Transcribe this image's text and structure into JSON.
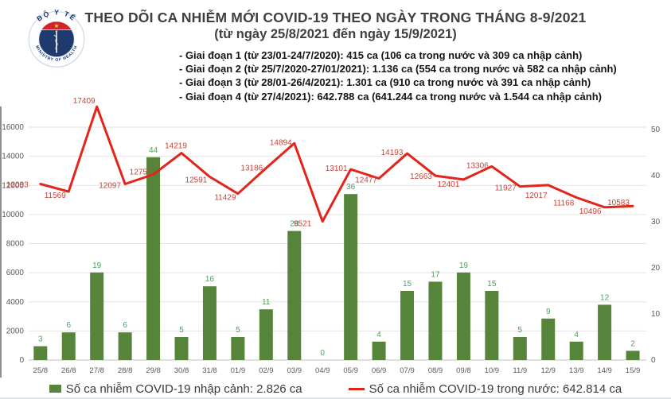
{
  "header": {
    "logo": {
      "top_text": "BỘ Y TẾ",
      "bottom_text": "MINISTRY OF HEALTH"
    },
    "title": "THEO DÕI CA NHIỄM MỚI COVID-19 THEO NGÀY TRONG THÁNG 8-9/2021",
    "subtitle": "(từ ngày 25/8/2021 đến ngày 15/9/2021)",
    "phases": [
      "- Giai đoạn 1 (từ 23/01-24/7/2020): 415 ca (106 ca trong nước và 309 ca nhập cảnh)",
      "- Giai đoạn 2 (từ 25/7/2020-27/01/2021): 1.136 ca (554 ca trong nước và 582 ca nhập cảnh)",
      "- Giai đoạn 3 (từ 28/01-26/4/2021): 1.301 ca (910 ca trong nước và 391 ca nhập cảnh)",
      "- Giai đoạn 4 (từ 27/4/2021): 642.788 ca (641.244 ca trong nước và 1.544 ca nhập cảnh)"
    ]
  },
  "chart_data": {
    "type": "combo",
    "categories": [
      "25/8",
      "26/8",
      "27/8",
      "28/8",
      "29/8",
      "30/8",
      "31/8",
      "01/9",
      "02/9",
      "03/9",
      "04/9",
      "05/9",
      "06/9",
      "07/9",
      "08/9",
      "09/8",
      "10/9",
      "11/9",
      "12/9",
      "13/9",
      "14/9",
      "15/9"
    ],
    "series": [
      {
        "name": "Số ca nhiễm COVID-19 nhập cảnh",
        "type": "bar",
        "axis": "right",
        "values": [
          3,
          6,
          19,
          6,
          44,
          5,
          16,
          5,
          11,
          28,
          0,
          36,
          4,
          15,
          17,
          19,
          15,
          5,
          9,
          4,
          12,
          2
        ]
      },
      {
        "name": "Số ca nhiễm COVID-19 trong nước",
        "type": "line",
        "axis": "left",
        "values": [
          12093,
          11569,
          17409,
          12097,
          12752,
          14219,
          12591,
          11429,
          13186,
          14894,
          9521,
          13101,
          12477,
          14193,
          12663,
          12401,
          13306,
          11927,
          12017,
          11168,
          10496,
          10583
        ]
      }
    ],
    "left_axis": {
      "ticks": [
        0,
        2000,
        4000,
        6000,
        8000,
        10000,
        12000,
        14000,
        16000
      ],
      "max": 16000
    },
    "right_axis": {
      "ticks": [
        0,
        10,
        20,
        30,
        40,
        50
      ],
      "max": 50
    },
    "grid": true,
    "legend_position": "bottom",
    "colors": {
      "bar": "#55843a",
      "bar_label": "#4d9e62",
      "line": "#e2241b",
      "line_label": "#c7433a",
      "axis_text": "#595959",
      "gridline": "#e2e2e2",
      "baseline": "#bfbfbf"
    }
  },
  "legend": {
    "items": [
      {
        "label": "Số ca nhiễm COVID-19 nhập cảnh: 2.826 ca",
        "color": "#55843a"
      },
      {
        "label": "Số ca nhiễm COVID-19 trong nước: 642.814 ca",
        "color": "#e2241b"
      }
    ]
  }
}
